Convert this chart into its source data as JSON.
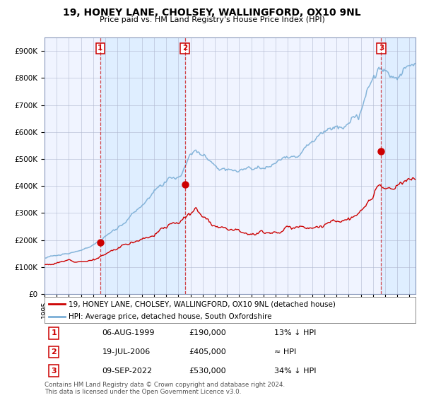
{
  "title": "19, HONEY LANE, CHOLSEY, WALLINGFORD, OX10 9NL",
  "subtitle": "Price paid vs. HM Land Registry's House Price Index (HPI)",
  "hpi_color": "#7aaed6",
  "price_color": "#cc0000",
  "bg_color": "#ddeeff",
  "plot_bg": "#f0f4ff",
  "grid_color": "#b0b8d0",
  "purchases": [
    {
      "label": "1",
      "date_num": 1999.58,
      "price": 190000
    },
    {
      "label": "2",
      "date_num": 2006.54,
      "price": 405000
    },
    {
      "label": "3",
      "date_num": 2022.68,
      "price": 530000
    }
  ],
  "table_rows": [
    [
      "1",
      "06-AUG-1999",
      "£190,000",
      "13% ↓ HPI"
    ],
    [
      "2",
      "19-JUL-2006",
      "£405,000",
      "≈ HPI"
    ],
    [
      "3",
      "09-SEP-2022",
      "£530,000",
      "34% ↓ HPI"
    ]
  ],
  "legend_entries": [
    "19, HONEY LANE, CHOLSEY, WALLINGFORD, OX10 9NL (detached house)",
    "HPI: Average price, detached house, South Oxfordshire"
  ],
  "footer": "Contains HM Land Registry data © Crown copyright and database right 2024.\nThis data is licensed under the Open Government Licence v3.0.",
  "ylim": [
    0,
    950000
  ],
  "xlim_start": 1995.0,
  "xlim_end": 2025.5
}
